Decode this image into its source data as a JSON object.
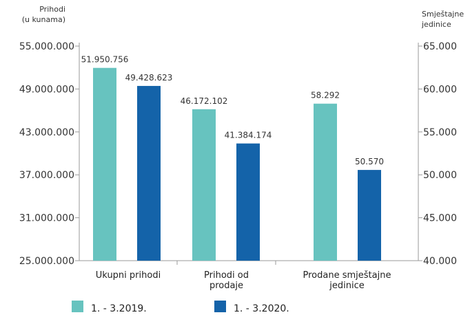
{
  "chart_data": {
    "type": "bar",
    "left_axis": {
      "title_lines": [
        "Prihodi",
        "(u kunama)"
      ],
      "ticks": [
        "55.000.000",
        "49.000.000",
        "43.000.000",
        "37.000.000",
        "31.000.000",
        "25.000.000"
      ],
      "tick_values": [
        55000000,
        49000000,
        43000000,
        37000000,
        31000000,
        25000000
      ],
      "range": [
        25000000,
        55000000
      ]
    },
    "right_axis": {
      "title_lines": [
        "Smještajne",
        "jedinice"
      ],
      "ticks": [
        "65.000",
        "60.000",
        "55.000",
        "50.000",
        "45.000",
        "40.000"
      ],
      "tick_values": [
        65000,
        60000,
        55000,
        50000,
        45000,
        40000
      ],
      "range": [
        40000,
        65000
      ]
    },
    "categories": [
      {
        "lines": [
          "Ukupni prihodi"
        ],
        "axis": "left"
      },
      {
        "lines": [
          "Prihodi od",
          "prodaje"
        ],
        "axis": "left"
      },
      {
        "lines": [
          "Prodane smještajne",
          "jedinice"
        ],
        "axis": "right"
      }
    ],
    "series": [
      {
        "name": "1. - 3.2019.",
        "color": "#67c3bf",
        "values": [
          51950756,
          46172102,
          58292
        ],
        "labels": [
          "51.950.756",
          "46.172.102",
          "58.292"
        ]
      },
      {
        "name": "1. - 3.2020.",
        "color": "#1463a9",
        "values": [
          49428623,
          41384174,
          50570
        ],
        "labels": [
          "49.428.623",
          "41.384.174",
          "50.570"
        ]
      }
    ],
    "legend": "bottom",
    "grid": false
  }
}
